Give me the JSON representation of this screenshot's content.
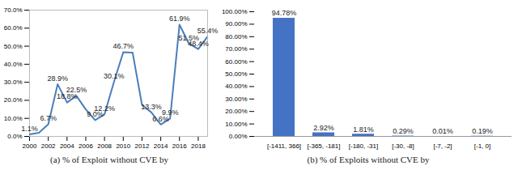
{
  "chart_data": [
    {
      "type": "line",
      "caption": "(a) % of Exploit without CVE by",
      "x": [
        2000,
        2001,
        2002,
        2003,
        2004,
        2005,
        2006,
        2007,
        2008,
        2009,
        2010,
        2011,
        2012,
        2013,
        2014,
        2015,
        2016,
        2017,
        2018,
        2019
      ],
      "values": [
        1.1,
        2.0,
        6.7,
        28.9,
        18.8,
        22.5,
        15.0,
        9.0,
        12.2,
        30.1,
        46.7,
        46.4,
        17.5,
        13.3,
        6.6,
        9.9,
        61.9,
        51.5,
        48.4,
        55.4
      ],
      "value_labels": [
        "1.1%",
        null,
        "6.7%",
        "28.9%",
        "18.8%",
        "22.5%",
        null,
        "9.0%",
        "12.2%",
        "30.1%",
        "46.7%",
        null,
        null,
        "13.3%",
        "6.6%",
        "9.9%",
        "61.9%",
        "51.5%",
        "48.4%",
        "55.4%"
      ],
      "data_labels": true,
      "color": "#4a7ebb",
      "xlim": [
        2000,
        2019
      ],
      "xticks": [
        2000,
        2002,
        2004,
        2006,
        2008,
        2010,
        2012,
        2014,
        2016,
        2018
      ],
      "ylim": [
        0,
        70
      ],
      "yticks": [
        {
          "value": 0,
          "label": "0.0%"
        },
        {
          "value": 10,
          "label": "10.0%"
        },
        {
          "value": 20,
          "label": "20.0%"
        },
        {
          "value": 30,
          "label": "30.0%"
        },
        {
          "value": 40,
          "label": "40.0%"
        },
        {
          "value": 50,
          "label": "50.0%"
        },
        {
          "value": 60,
          "label": "60.0%"
        },
        {
          "value": 70,
          "label": "70.0%"
        }
      ],
      "grid": false
    },
    {
      "type": "bar",
      "caption": "(b) % of Exploits without CVE by",
      "categories": [
        "[-1411, 366]",
        "[-365, -181]",
        "[-180, -31]",
        "[-30, -8]",
        "[-7, -2]",
        "[-1, 0]"
      ],
      "values": [
        94.78,
        2.92,
        1.81,
        0.29,
        0.01,
        0.19
      ],
      "value_labels": [
        "94.78%",
        "2.92%",
        "1.81%",
        "0.29%",
        "0.01%",
        "0.19%"
      ],
      "data_labels": true,
      "color": "#4472c4",
      "ylim": [
        0,
        100
      ],
      "yticks": [
        {
          "value": 0,
          "label": "0.00%"
        },
        {
          "value": 10,
          "label": "10.00%"
        },
        {
          "value": 20,
          "label": "20.00%"
        },
        {
          "value": 30,
          "label": "30.00%"
        },
        {
          "value": 40,
          "label": "40.00%"
        },
        {
          "value": 50,
          "label": "50.00%"
        },
        {
          "value": 60,
          "label": "60.00%"
        },
        {
          "value": 70,
          "label": "70.00%"
        },
        {
          "value": 80,
          "label": "80.00%"
        },
        {
          "value": 90,
          "label": "90.00%"
        },
        {
          "value": 100,
          "label": "100.00%"
        }
      ],
      "grid": false
    }
  ]
}
